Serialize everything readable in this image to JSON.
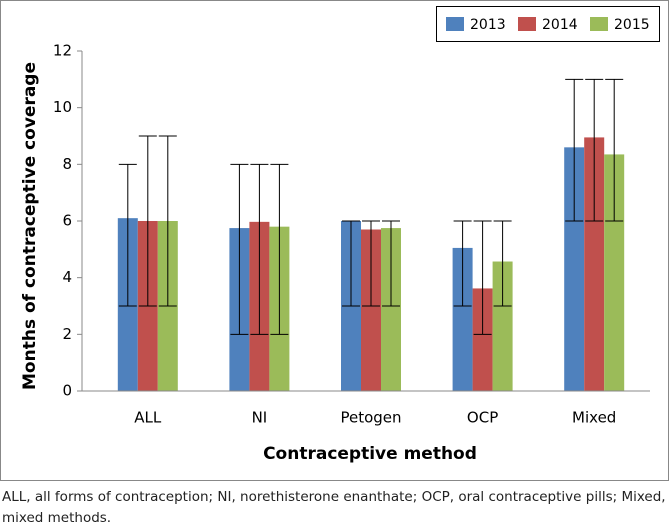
{
  "chart_data": {
    "type": "bar",
    "categories": [
      "ALL",
      "NI",
      "Petogen",
      "OCP",
      "Mixed"
    ],
    "series": [
      {
        "name": "2013",
        "color": "#4f81bd",
        "values": [
          6.1,
          5.75,
          6.0,
          5.05,
          8.6
        ],
        "lows": [
          3,
          2,
          3,
          3,
          6
        ],
        "highs": [
          8,
          8,
          6,
          6,
          11
        ]
      },
      {
        "name": "2014",
        "color": "#c0504d",
        "values": [
          6.0,
          5.97,
          5.7,
          3.62,
          8.95
        ],
        "lows": [
          3,
          2,
          3,
          2,
          6
        ],
        "highs": [
          9,
          8,
          6,
          6,
          11
        ]
      },
      {
        "name": "2015",
        "color": "#9bbb59",
        "values": [
          6.0,
          5.8,
          5.75,
          4.57,
          8.35
        ],
        "lows": [
          3,
          2,
          3,
          3,
          6
        ],
        "highs": [
          9,
          8,
          6,
          6,
          11
        ]
      }
    ],
    "ylim": [
      0,
      12
    ],
    "yticks": [
      0,
      2,
      4,
      6,
      8,
      10,
      12
    ],
    "grid": false,
    "legend": "top-right",
    "ylabel": "Months of contraceptive coverage",
    "xlabel": "Contraceptive method"
  },
  "caption": "ALL, all forms of contraception; NI, norethisterone enanthate; OCP, oral contraceptive pills; Mixed, mixed methods."
}
